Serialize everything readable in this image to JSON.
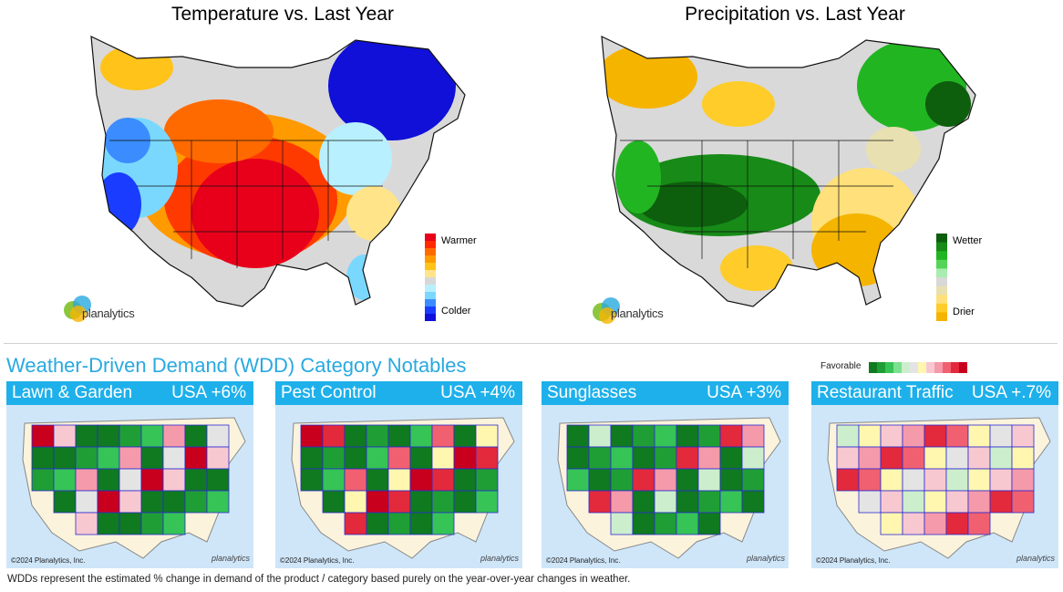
{
  "temperature": {
    "title": "Temperature vs. Last Year",
    "legend_top": "Warmer",
    "legend_bottom": "Colder",
    "legend_colors": [
      "#e8001b",
      "#ff2a00",
      "#ff6a00",
      "#ff9a00",
      "#ffc31a",
      "#ffe48a",
      "#d8d8d8",
      "#b8f0ff",
      "#7ad8ff",
      "#3b8cff",
      "#1a3cff",
      "#1010d8"
    ]
  },
  "precipitation": {
    "title": "Precipitation vs. Last Year",
    "legend_top": "Wetter",
    "legend_bottom": "Drier",
    "legend_colors": [
      "#0d5e0d",
      "#178a17",
      "#22b522",
      "#55d455",
      "#a8ecb0",
      "#d8d8d8",
      "#e8e0b0",
      "#ffe07a",
      "#ffcc2a",
      "#f5b400"
    ]
  },
  "brand": {
    "logo_text": "planalytics"
  },
  "wdd": {
    "title": "Weather-Driven Demand (WDD) Category Notables",
    "scale_label": "Favorable",
    "scale_colors": [
      "#0f7a1f",
      "#1f9e35",
      "#35c455",
      "#7ce08e",
      "#cdeecd",
      "#e4e4e4",
      "#fff6b0",
      "#f8c8d0",
      "#f59aaa",
      "#f06070",
      "#e3293c",
      "#c8001e"
    ],
    "panels": [
      {
        "category": "Lawn & Garden",
        "value": "USA +6%",
        "copyright": "©2024 Planalytics, Inc."
      },
      {
        "category": "Pest Control",
        "value": "USA +4%",
        "copyright": "©2024 Planalytics, Inc."
      },
      {
        "category": "Sunglasses",
        "value": "USA +3%",
        "copyright": "©2024 Planalytics, Inc."
      },
      {
        "category": "Restaurant Traffic",
        "value": "USA +.7%",
        "copyright": "©2024 Planalytics, Inc."
      }
    ],
    "footnote": "WDDs represent the estimated % change in demand of the product / category based purely on the year-over-year changes in weather."
  }
}
